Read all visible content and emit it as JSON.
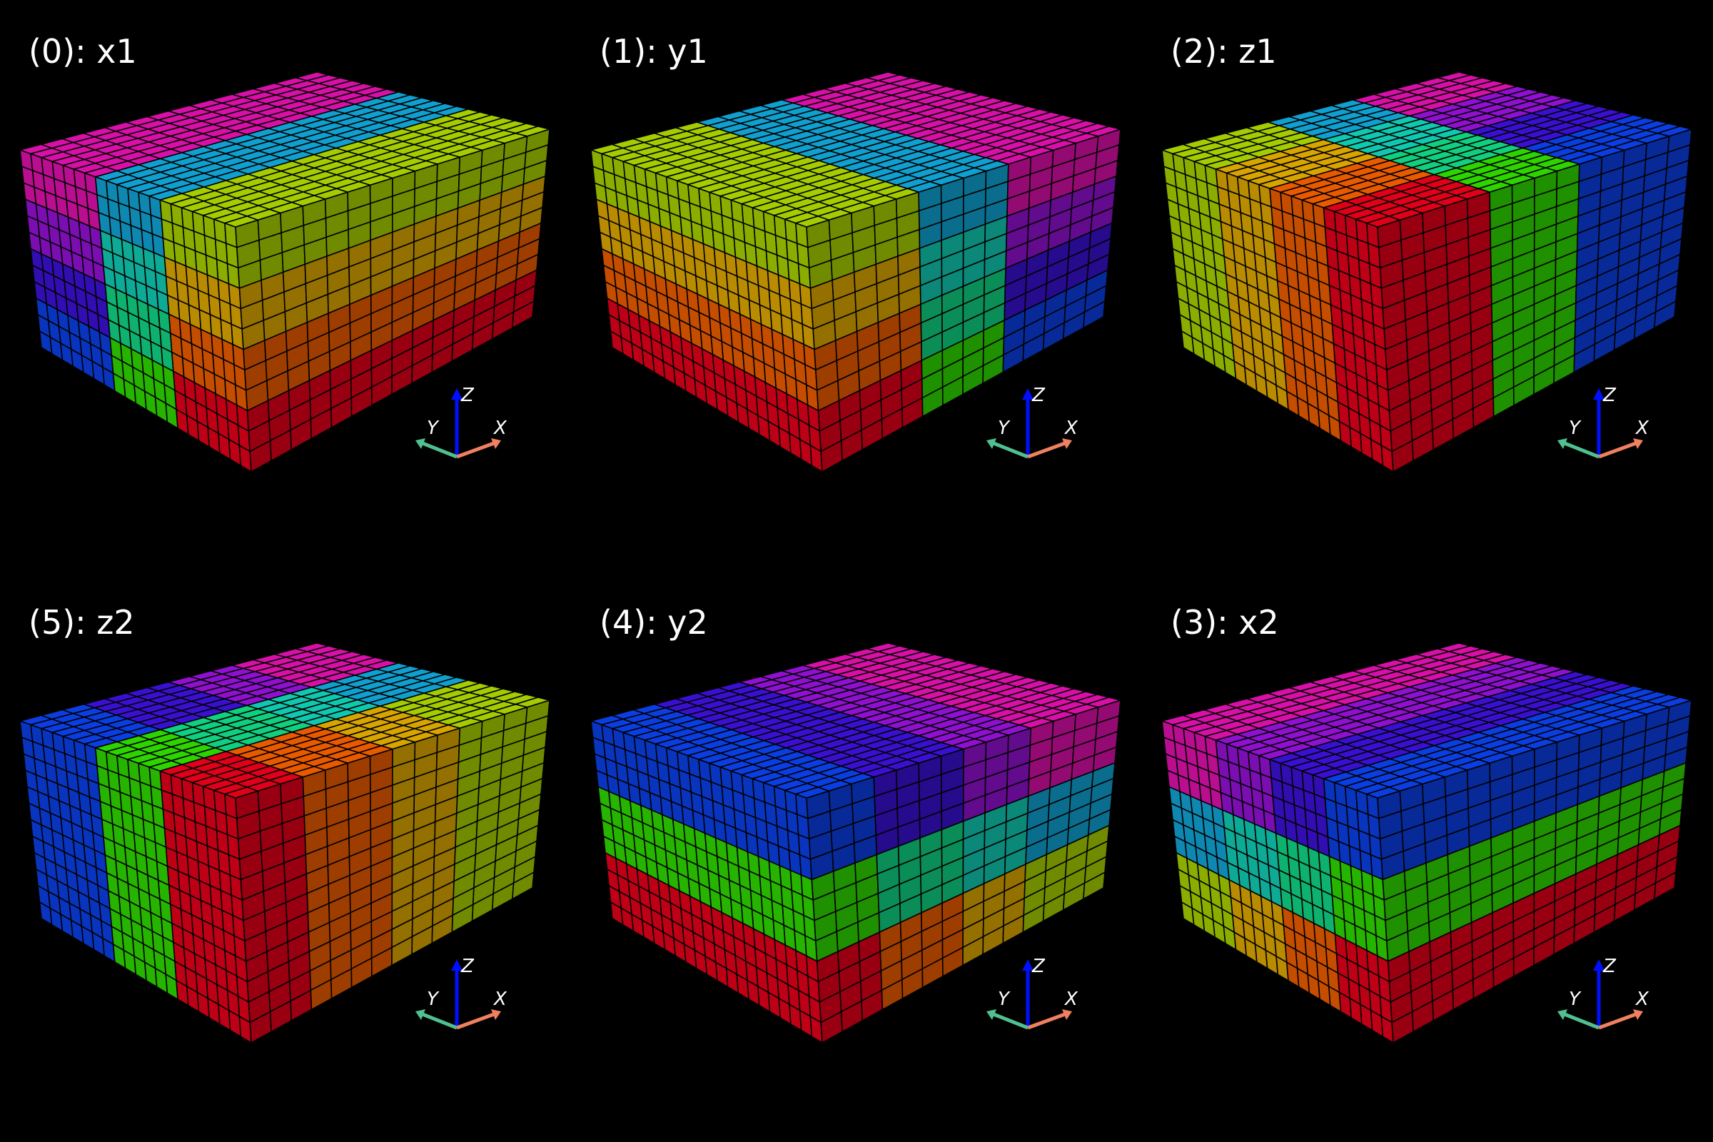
{
  "panels": [
    {
      "title": "(0): x1",
      "axis_labels": {
        "x": "X",
        "y": "Y",
        "z": "Z"
      }
    },
    {
      "title": "(1): y1",
      "axis_labels": {
        "x": "X",
        "y": "Y",
        "z": "Z"
      }
    },
    {
      "title": "(2): z1",
      "axis_labels": {
        "x": "X",
        "y": "Y",
        "z": "Z"
      }
    },
    {
      "title": "(5): z2",
      "axis_labels": {
        "x": "X",
        "y": "Y",
        "z": "Z"
      }
    },
    {
      "title": "(4): y2",
      "axis_labels": {
        "x": "X",
        "y": "Y",
        "z": "Z"
      }
    },
    {
      "title": "(3): x2",
      "axis_labels": {
        "x": "X",
        "y": "Y",
        "z": "Z"
      }
    }
  ]
}
